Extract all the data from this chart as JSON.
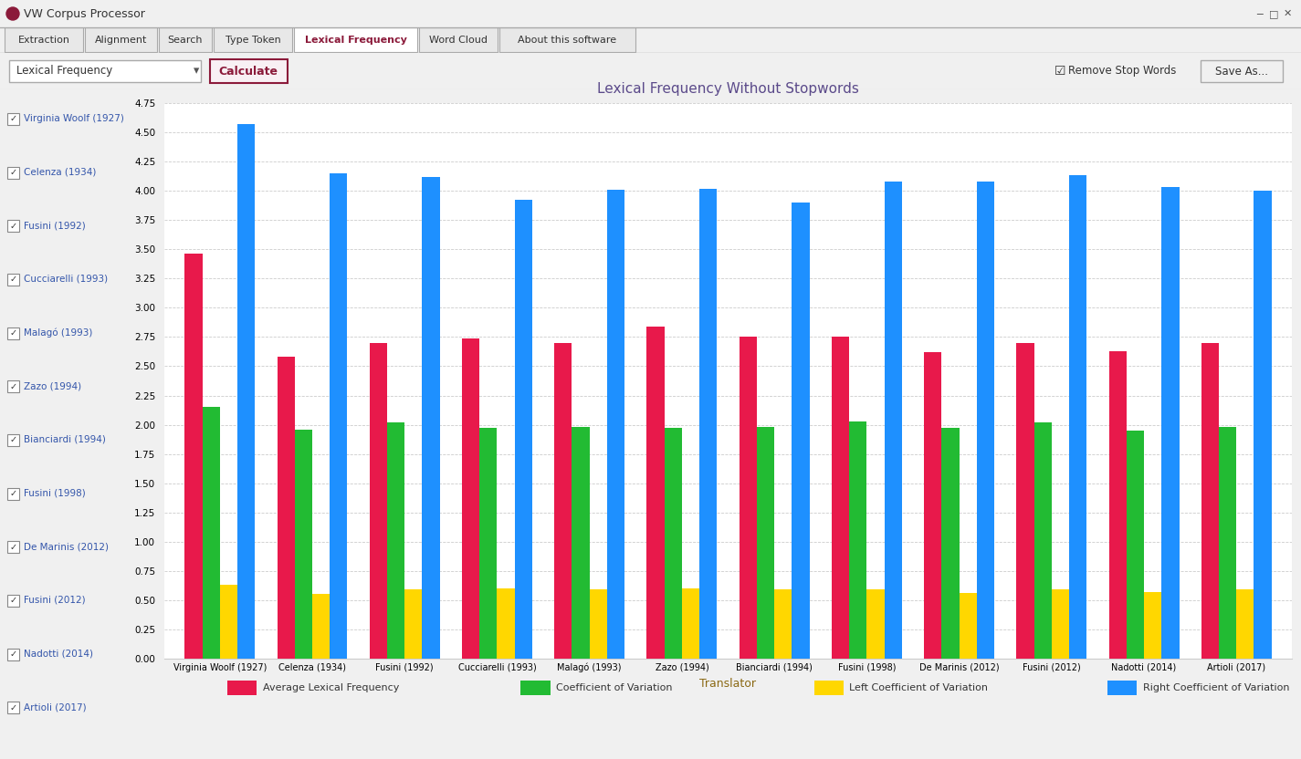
{
  "title": "Lexical Frequency Without Stopwords",
  "xlabel": "Translator",
  "translators": [
    "Virginia Woolf (1927)",
    "Celenza (1934)",
    "Fusini (1992)",
    "Cucciarelli (1993)",
    "Malagó (1993)",
    "Zazo (1994)",
    "Bianciardi (1994)",
    "Fusini (1998)",
    "De Marinis (2012)",
    "Fusini (2012)",
    "Nadotti (2014)",
    "Artioli (2017)"
  ],
  "avg_lex_freq": [
    3.46,
    2.58,
    2.7,
    2.74,
    2.7,
    2.84,
    2.75,
    2.75,
    2.62,
    2.7,
    2.63,
    2.7
  ],
  "coeff_variation": [
    2.15,
    1.96,
    2.02,
    1.97,
    1.98,
    1.97,
    1.98,
    2.03,
    1.97,
    2.02,
    1.95,
    1.98
  ],
  "left_coeff": [
    0.63,
    0.55,
    0.59,
    0.6,
    0.59,
    0.6,
    0.59,
    0.59,
    0.56,
    0.59,
    0.57,
    0.59
  ],
  "right_coeff": [
    4.57,
    4.15,
    4.12,
    3.92,
    4.01,
    4.02,
    3.9,
    4.08,
    4.08,
    4.13,
    4.03,
    4.0
  ],
  "colors": {
    "avg_lex_freq": "#E8194B",
    "coeff_variation": "#22BB33",
    "left_coeff": "#FFD700",
    "right_coeff": "#1E90FF"
  },
  "ylim": [
    0.0,
    4.75
  ],
  "yticks": [
    0.0,
    0.25,
    0.5,
    0.75,
    1.0,
    1.25,
    1.5,
    1.75,
    2.0,
    2.25,
    2.5,
    2.75,
    3.0,
    3.25,
    3.5,
    3.75,
    4.0,
    4.25,
    4.5,
    4.75
  ],
  "legend_labels": [
    "Average Lexical Frequency",
    "Coefficient of Variation",
    "Left Coefficient of Variation",
    "Right Coefficient of Variation"
  ],
  "title_color": "#5B4A8A",
  "xlabel_color": "#8B6914",
  "bar_width": 0.19,
  "window_title": "VW Corpus Processor",
  "tabs": [
    "Extraction",
    "Alignment",
    "Search",
    "Type Token",
    "Lexical Frequency",
    "Word Cloud",
    "About this software"
  ],
  "active_tab": "Lexical Frequency",
  "dropdown_label": "Lexical Frequency",
  "calculate_btn": "Calculate",
  "checkbox_label": "Remove Stop Words",
  "save_btn": "Save As...",
  "sidebar_items": [
    "Virginia Woolf (1927)",
    "Celenza (1934)",
    "Fusini (1992)",
    "Cucciarelli (1993)",
    "Malagó (1993)",
    "Zazo (1994)",
    "Bianciardi (1994)",
    "Fusini (1998)",
    "De Marinis (2012)",
    "Fusini (2012)",
    "Nadotti (2014)",
    "Artioli (2017)"
  ],
  "bg_window": "#F0F0F0",
  "bg_titlebar": "#F0F0F0",
  "bg_chart": "#FFFFFF",
  "grid_color": "#CCCCCC",
  "tab_active_bg": "#FFFFFF",
  "tab_inactive_bg": "#E8E8E8",
  "sidebar_text_color": "#3355AA",
  "toolbar_bg": "#F0F0F0"
}
